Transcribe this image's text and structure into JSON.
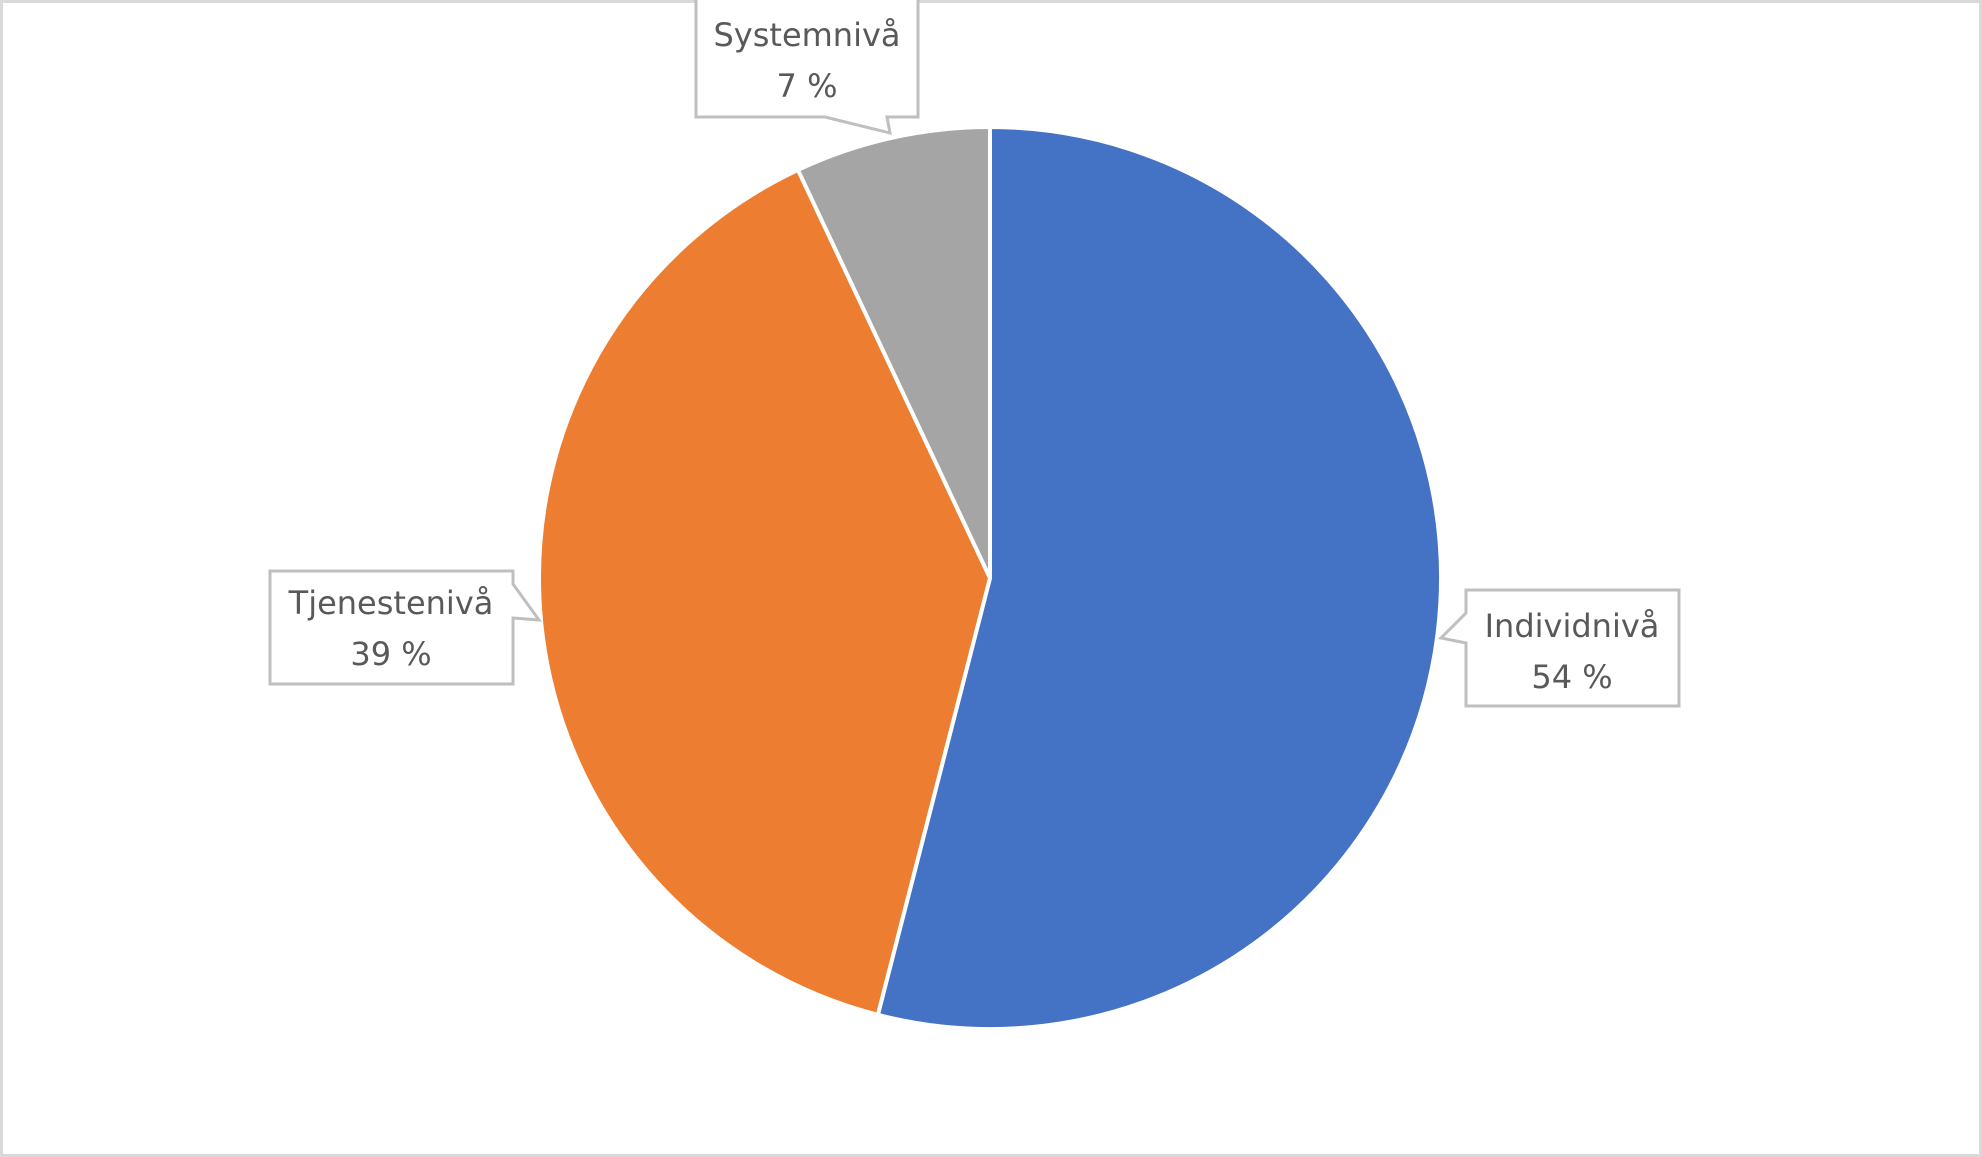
{
  "chart_data": {
    "type": "pie",
    "title": "",
    "categories": [
      "Individnivå",
      "Tjenestenivå",
      "Systemnivå"
    ],
    "values": [
      54,
      39,
      7
    ],
    "unit": "%",
    "data_labels": [
      "Individnivå\n54 %",
      "Tjenestenivå\n39 %",
      "Systemnivå\n7 %"
    ],
    "colors": [
      "#4472c4",
      "#ed7d31",
      "#a5a5a5"
    ],
    "start_angle_deg": 0,
    "direction": "clockwise",
    "legend": "none"
  },
  "labels": {
    "individ": {
      "name": "Individnivå",
      "value": "54 %"
    },
    "tjeneste": {
      "name": "Tjenestenivå",
      "value": "39 %"
    },
    "system": {
      "name": "Systemnivå",
      "value": "7 %"
    }
  }
}
